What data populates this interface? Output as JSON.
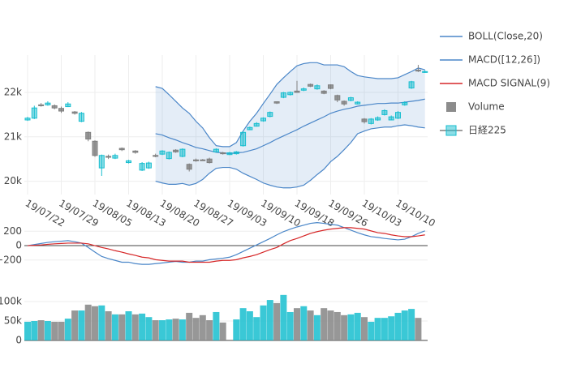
{
  "chart_data": [
    {
      "type": "candlestick",
      "name": "日経225",
      "categories": [
        "19/07/22",
        null,
        null,
        null,
        null,
        "19/07/29",
        null,
        null,
        null,
        null,
        "19/08/05",
        null,
        null,
        null,
        null,
        "19/08/13",
        null,
        null,
        null,
        null,
        "19/08/20",
        null,
        null,
        null,
        null,
        "19/08/27",
        null,
        null,
        null,
        null,
        "19/09/03",
        null,
        null,
        null,
        null,
        "19/09/10",
        null,
        null,
        null,
        null,
        "19/09/18",
        null,
        null,
        null,
        null,
        "19/09/26",
        null,
        null,
        null,
        null,
        "19/10/03",
        null,
        null,
        null,
        null,
        "19/10/10",
        null,
        null,
        null,
        null
      ],
      "open": [
        21380,
        21420,
        21720,
        21720,
        21700,
        21640,
        21680,
        21560,
        21350,
        21100,
        20900,
        20300,
        20560,
        20520,
        20740,
        20420,
        20680,
        20250,
        20300,
        20580,
        20610,
        20510,
        20700,
        20560,
        20380,
        20480,
        20480,
        20500,
        20660,
        20640,
        20600,
        20620,
        20800,
        21160,
        21240,
        21360,
        21460,
        21790,
        21890,
        21950,
        22030,
        22050,
        22180,
        22080,
        22030,
        22170,
        21930,
        21800,
        21820,
        21740,
        21400,
        21300,
        21380,
        21500,
        21380,
        21420,
        21720,
        22100,
        22500,
        22450
      ],
      "high": [
        21450,
        21700,
        21760,
        21800,
        21730,
        21680,
        21780,
        21580,
        21560,
        21120,
        20920,
        20600,
        20600,
        20620,
        20760,
        20480,
        20700,
        20430,
        20440,
        20620,
        20700,
        20670,
        20720,
        20740,
        20400,
        20510,
        20500,
        20530,
        20740,
        20660,
        20660,
        20680,
        21130,
        21230,
        21330,
        21440,
        21570,
        21800,
        22010,
        22020,
        22260,
        22110,
        22200,
        22180,
        22050,
        22180,
        21950,
        21820,
        21900,
        21800,
        21420,
        21420,
        21460,
        21620,
        21480,
        21580,
        21800,
        22260,
        22620,
        22500
      ],
      "low": [
        21360,
        21400,
        21680,
        21700,
        21620,
        21540,
        21670,
        21500,
        21330,
        20900,
        20550,
        20120,
        20500,
        20500,
        20680,
        20400,
        20620,
        20230,
        20280,
        20540,
        20590,
        20490,
        20640,
        20540,
        20220,
        20440,
        20460,
        20400,
        20650,
        20600,
        20590,
        20600,
        20780,
        21150,
        21230,
        21340,
        21440,
        21740,
        21870,
        21930,
        21990,
        22030,
        22120,
        22060,
        21960,
        22070,
        21780,
        21700,
        21800,
        21730,
        21300,
        21280,
        21360,
        21480,
        21370,
        21400,
        21700,
        22080,
        22460,
        22440
      ],
      "close": [
        21420,
        21650,
        21700,
        21760,
        21650,
        21580,
        21740,
        21530,
        21530,
        20950,
        20580,
        20580,
        20540,
        20580,
        20710,
        20460,
        20650,
        20400,
        20410,
        20560,
        20680,
        20650,
        20660,
        20720,
        20270,
        20460,
        20470,
        20420,
        20720,
        20620,
        20640,
        20660,
        21100,
        21210,
        21300,
        21420,
        21550,
        21760,
        21990,
        22000,
        22000,
        22080,
        22140,
        22150,
        21980,
        22090,
        21830,
        21740,
        21880,
        21780,
        21340,
        21400,
        21430,
        21590,
        21450,
        21550,
        21770,
        22240,
        22490,
        22470
      ],
      "increasing_color": "#17becf",
      "decreasing_color": "#7f7f7f",
      "ylim": [
        19700,
        22840
      ],
      "yticks": [
        {
          "value": 20000,
          "label": "20k"
        },
        {
          "value": 21000,
          "label": "21k"
        },
        {
          "value": 22000,
          "label": "22k"
        }
      ],
      "grid": true,
      "series": [
        {
          "name": "BOLL(Close,20)",
          "color": "#4a86c8",
          "upper": [
            null,
            null,
            null,
            null,
            null,
            null,
            null,
            null,
            null,
            null,
            null,
            null,
            null,
            null,
            null,
            null,
            null,
            null,
            null,
            22130,
            22090,
            21950,
            21800,
            21650,
            21530,
            21350,
            21200,
            20980,
            20800,
            20780,
            20780,
            20870,
            21130,
            21350,
            21530,
            21750,
            21960,
            22180,
            22330,
            22470,
            22600,
            22650,
            22670,
            22670,
            22620,
            22620,
            22620,
            22580,
            22470,
            22380,
            22350,
            22330,
            22310,
            22310,
            22310,
            22330,
            22400,
            22470,
            22550,
            22510
          ],
          "middle": [
            null,
            null,
            null,
            null,
            null,
            null,
            null,
            null,
            null,
            null,
            null,
            null,
            null,
            null,
            null,
            null,
            null,
            null,
            null,
            21070,
            21040,
            20980,
            20930,
            20870,
            20820,
            20760,
            20730,
            20690,
            20650,
            20640,
            20620,
            20640,
            20650,
            20690,
            20730,
            20800,
            20870,
            20950,
            21020,
            21090,
            21160,
            21240,
            21310,
            21380,
            21450,
            21530,
            21580,
            21620,
            21650,
            21690,
            21710,
            21730,
            21750,
            21750,
            21760,
            21760,
            21780,
            21800,
            21820,
            21850
          ],
          "lower": [
            null,
            null,
            null,
            null,
            null,
            null,
            null,
            null,
            null,
            null,
            null,
            null,
            null,
            null,
            null,
            null,
            null,
            null,
            null,
            20000,
            19960,
            19930,
            19930,
            19950,
            19910,
            19950,
            20040,
            20180,
            20290,
            20310,
            20310,
            20270,
            20180,
            20110,
            20040,
            19960,
            19910,
            19870,
            19850,
            19850,
            19870,
            19910,
            20020,
            20150,
            20270,
            20440,
            20560,
            20710,
            20870,
            21070,
            21130,
            21180,
            21200,
            21220,
            21220,
            21250,
            21270,
            21250,
            21220,
            21200
          ]
        }
      ]
    },
    {
      "type": "line",
      "ylim": [
        -360,
        350
      ],
      "yticks": [
        200,
        0,
        {
          "value": -200,
          "label": "−200"
        }
      ],
      "grid": true,
      "series": [
        {
          "name": "MACD([12,26])",
          "color": "#4a86c8",
          "values": [
            0,
            15,
            30,
            45,
            55,
            62,
            70,
            55,
            35,
            -25,
            -90,
            -150,
            -180,
            -205,
            -230,
            -230,
            -250,
            -260,
            -260,
            -250,
            -240,
            -230,
            -220,
            -230,
            -230,
            -215,
            -215,
            -195,
            -185,
            -175,
            -160,
            -125,
            -80,
            -35,
            10,
            55,
            100,
            150,
            195,
            230,
            260,
            285,
            310,
            320,
            310,
            295,
            285,
            250,
            215,
            180,
            150,
            125,
            115,
            100,
            90,
            80,
            90,
            125,
            170,
            205
          ]
        },
        {
          "name": "MACD SIGNAL(9)",
          "color": "#d62728",
          "values": [
            0,
            5,
            10,
            18,
            25,
            30,
            35,
            35,
            35,
            25,
            0,
            -25,
            -45,
            -70,
            -90,
            -115,
            -135,
            -160,
            -170,
            -195,
            -205,
            -215,
            -215,
            -215,
            -230,
            -230,
            -230,
            -230,
            -215,
            -205,
            -205,
            -195,
            -170,
            -150,
            -125,
            -90,
            -55,
            -25,
            25,
            70,
            100,
            135,
            170,
            195,
            215,
            230,
            240,
            250,
            250,
            240,
            230,
            205,
            180,
            170,
            150,
            135,
            125,
            125,
            135,
            150
          ]
        }
      ]
    },
    {
      "type": "bar",
      "ylim": [
        0,
        125000
      ],
      "yticks": [
        0,
        {
          "value": 50000,
          "label": "50k"
        },
        {
          "value": 100000,
          "label": "100k"
        }
      ],
      "grid": true,
      "series": [
        {
          "name": "Volume",
          "color": "#8c8c8c",
          "values": [
            48000,
            50000,
            52000,
            50000,
            48000,
            48000,
            56000,
            77000,
            77000,
            92000,
            88000,
            90000,
            75000,
            67000,
            67000,
            75000,
            67000,
            69000,
            60000,
            52000,
            52000,
            54000,
            56000,
            54000,
            71000,
            58000,
            65000,
            52000,
            73000,
            46000,
            null,
            54000,
            83000,
            75000,
            60000,
            90000,
            104000,
            96000,
            117000,
            73000,
            83000,
            88000,
            77000,
            65000,
            83000,
            77000,
            73000,
            65000,
            67000,
            71000,
            60000,
            48000,
            58000,
            58000,
            62000,
            71000,
            77000,
            81000,
            58000,
            null
          ]
        }
      ]
    }
  ]
}
